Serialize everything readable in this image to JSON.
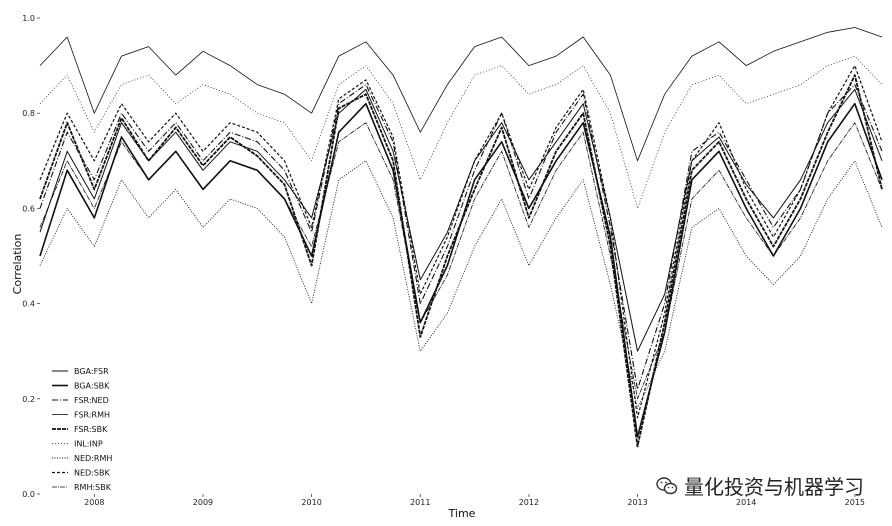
{
  "chart_data": {
    "type": "line",
    "xlabel": "Time",
    "ylabel": "Correlation",
    "ylim": [
      0.0,
      1.0
    ],
    "yticks": [
      "0.0",
      "0.2",
      "0.4",
      "0.6",
      "0.8",
      "1.0"
    ],
    "xticks": [
      "2008",
      "2009",
      "2010",
      "2011",
      "2012",
      "2013",
      "2014",
      "2015"
    ],
    "x": [
      2007.5,
      2007.75,
      2008.0,
      2008.25,
      2008.5,
      2008.75,
      2009.0,
      2009.25,
      2009.5,
      2009.75,
      2010.0,
      2010.25,
      2010.5,
      2010.75,
      2011.0,
      2011.25,
      2011.5,
      2011.75,
      2012.0,
      2012.25,
      2012.5,
      2012.75,
      2013.0,
      2013.25,
      2013.5,
      2013.75,
      2014.0,
      2014.25,
      2014.5,
      2014.75,
      2015.0,
      2015.25
    ],
    "series": [
      {
        "name": "BGA:FSR",
        "values": [
          0.55,
          0.72,
          0.62,
          0.78,
          0.7,
          0.76,
          0.68,
          0.74,
          0.72,
          0.66,
          0.58,
          0.8,
          0.85,
          0.72,
          0.45,
          0.55,
          0.7,
          0.78,
          0.66,
          0.74,
          0.82,
          0.58,
          0.3,
          0.42,
          0.7,
          0.75,
          0.65,
          0.58,
          0.66,
          0.78,
          0.85,
          0.7
        ]
      },
      {
        "name": "BGA:SBK",
        "values": [
          0.5,
          0.68,
          0.58,
          0.75,
          0.66,
          0.72,
          0.64,
          0.7,
          0.68,
          0.62,
          0.5,
          0.76,
          0.82,
          0.68,
          0.36,
          0.48,
          0.66,
          0.74,
          0.6,
          0.7,
          0.78,
          0.54,
          0.12,
          0.34,
          0.66,
          0.72,
          0.6,
          0.5,
          0.6,
          0.74,
          0.82,
          0.66
        ]
      },
      {
        "name": "FSR:NED",
        "values": [
          0.6,
          0.76,
          0.66,
          0.8,
          0.72,
          0.78,
          0.7,
          0.76,
          0.74,
          0.68,
          0.55,
          0.82,
          0.86,
          0.74,
          0.4,
          0.52,
          0.68,
          0.8,
          0.62,
          0.76,
          0.84,
          0.56,
          0.22,
          0.4,
          0.72,
          0.76,
          0.66,
          0.56,
          0.64,
          0.8,
          0.86,
          0.72
        ]
      },
      {
        "name": "FSR:RMH",
        "values": [
          0.9,
          0.96,
          0.8,
          0.92,
          0.94,
          0.88,
          0.93,
          0.9,
          0.86,
          0.84,
          0.8,
          0.92,
          0.95,
          0.88,
          0.76,
          0.86,
          0.94,
          0.96,
          0.9,
          0.92,
          0.96,
          0.88,
          0.7,
          0.84,
          0.92,
          0.95,
          0.9,
          0.93,
          0.95,
          0.97,
          0.98,
          0.96
        ]
      },
      {
        "name": "FSR:SBK",
        "values": [
          0.62,
          0.78,
          0.64,
          0.79,
          0.7,
          0.77,
          0.69,
          0.75,
          0.71,
          0.65,
          0.48,
          0.81,
          0.84,
          0.7,
          0.33,
          0.5,
          0.64,
          0.77,
          0.58,
          0.72,
          0.8,
          0.52,
          0.1,
          0.36,
          0.68,
          0.74,
          0.62,
          0.52,
          0.62,
          0.76,
          0.88,
          0.64
        ]
      },
      {
        "name": "INL:INP",
        "values": [
          0.82,
          0.88,
          0.76,
          0.86,
          0.88,
          0.82,
          0.86,
          0.84,
          0.8,
          0.78,
          0.7,
          0.86,
          0.9,
          0.82,
          0.66,
          0.78,
          0.88,
          0.9,
          0.84,
          0.86,
          0.9,
          0.8,
          0.6,
          0.76,
          0.86,
          0.88,
          0.82,
          0.84,
          0.86,
          0.9,
          0.92,
          0.86
        ]
      },
      {
        "name": "NED:RMH",
        "values": [
          0.48,
          0.6,
          0.52,
          0.66,
          0.58,
          0.64,
          0.56,
          0.62,
          0.6,
          0.54,
          0.4,
          0.66,
          0.7,
          0.58,
          0.3,
          0.38,
          0.52,
          0.62,
          0.48,
          0.58,
          0.66,
          0.44,
          0.18,
          0.3,
          0.56,
          0.6,
          0.5,
          0.44,
          0.5,
          0.62,
          0.7,
          0.56
        ]
      },
      {
        "name": "NED:SBK",
        "values": [
          0.66,
          0.8,
          0.7,
          0.82,
          0.74,
          0.8,
          0.72,
          0.78,
          0.76,
          0.7,
          0.56,
          0.83,
          0.87,
          0.75,
          0.42,
          0.54,
          0.7,
          0.8,
          0.64,
          0.77,
          0.85,
          0.58,
          0.16,
          0.38,
          0.7,
          0.78,
          0.64,
          0.54,
          0.64,
          0.8,
          0.9,
          0.74
        ]
      },
      {
        "name": "RMH:SBK",
        "values": [
          0.56,
          0.7,
          0.6,
          0.74,
          0.66,
          0.72,
          0.64,
          0.7,
          0.68,
          0.62,
          0.52,
          0.74,
          0.78,
          0.66,
          0.36,
          0.46,
          0.62,
          0.72,
          0.56,
          0.68,
          0.76,
          0.5,
          0.2,
          0.34,
          0.62,
          0.68,
          0.58,
          0.5,
          0.58,
          0.7,
          0.78,
          0.64
        ]
      }
    ],
    "grid": false,
    "legend": "bottom-left"
  },
  "watermark": {
    "text": "量化投资与机器学习",
    "icon": "wechat-icon"
  }
}
